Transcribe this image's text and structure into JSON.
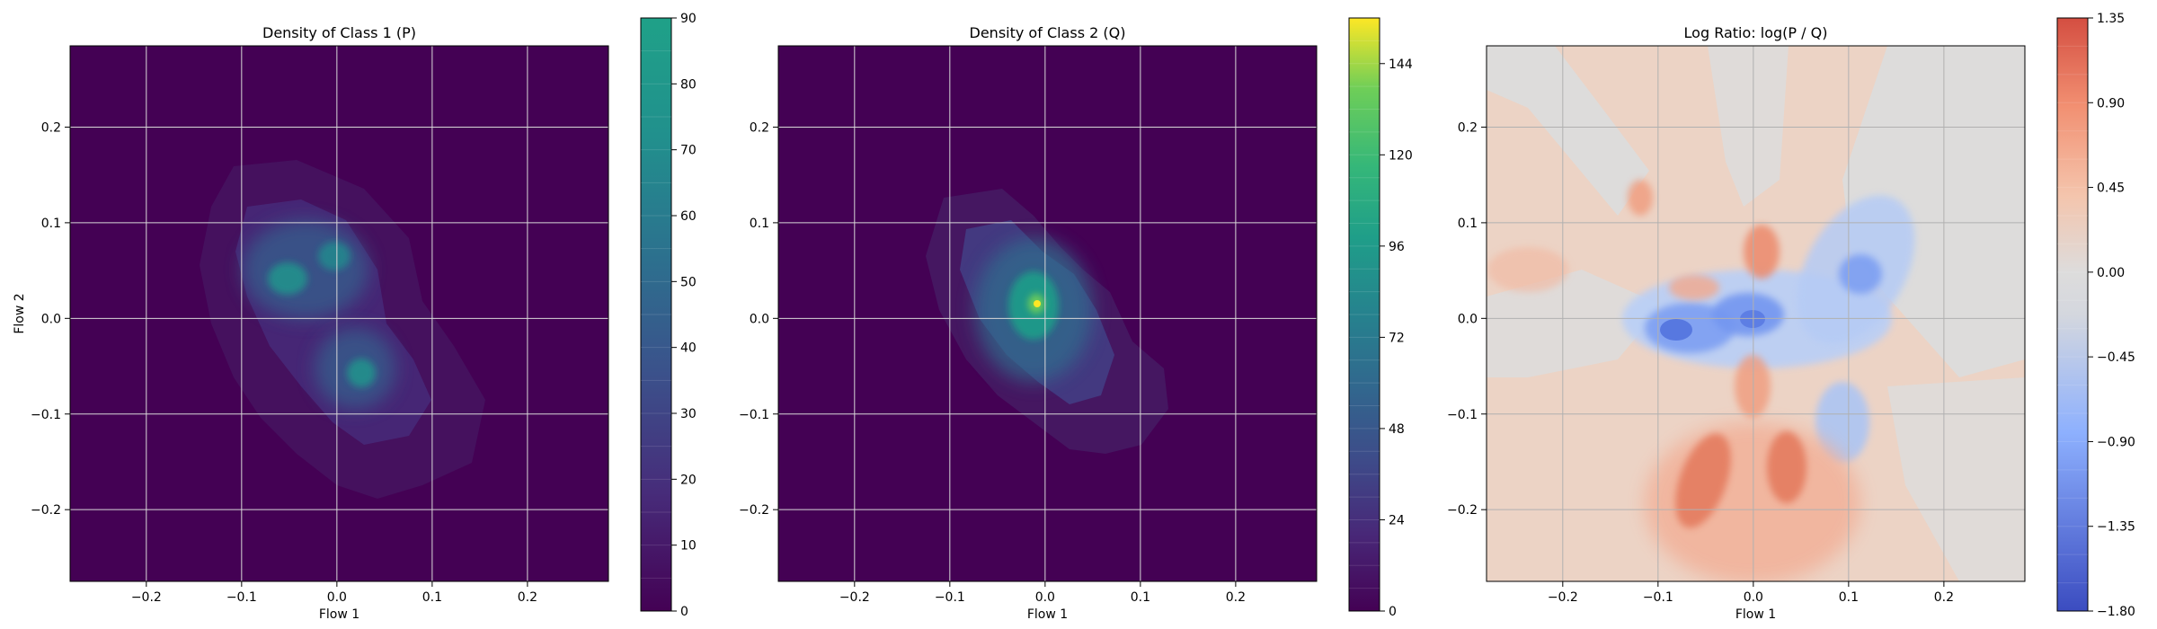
{
  "chart_data": [
    {
      "type": "heatmap",
      "title": "Density of Class 1 (P)",
      "xlabel": "Flow 1",
      "ylabel": "Flow 2",
      "xlim": [
        -0.28,
        0.285
      ],
      "ylim": [
        -0.275,
        0.285
      ],
      "xticks": [
        -0.2,
        -0.1,
        0.0,
        0.1,
        0.2
      ],
      "yticks": [
        -0.2,
        -0.1,
        0.0,
        0.1,
        0.2
      ],
      "xticklabels": [
        "−0.2",
        "−0.1",
        "0.0",
        "0.1",
        "0.2"
      ],
      "yticklabels": [
        "−0.2",
        "−0.1",
        "0.0",
        "0.1",
        "0.2"
      ],
      "grid": true,
      "colormap": "viridis",
      "colorbar": {
        "range": [
          0,
          90
        ],
        "ticks": [
          0,
          10,
          20,
          30,
          40,
          50,
          60,
          70,
          80,
          90
        ],
        "ticklabels": [
          "0",
          "10",
          "20",
          "30",
          "40",
          "50",
          "60",
          "70",
          "80",
          "90"
        ]
      },
      "peaks": [
        {
          "x": -0.05,
          "y": 0.04,
          "value": 55
        },
        {
          "x": 0.02,
          "y": -0.06,
          "value": 52
        },
        {
          "x": 0.0,
          "y": 0.06,
          "value": 45
        },
        {
          "x": -0.04,
          "y": 0.09,
          "value": 35
        }
      ]
    },
    {
      "type": "heatmap",
      "title": "Density of Class 2 (Q)",
      "xlabel": "Flow 1",
      "ylabel": "",
      "xlim": [
        -0.28,
        0.285
      ],
      "ylim": [
        -0.275,
        0.285
      ],
      "xticks": [
        -0.2,
        -0.1,
        0.0,
        0.1,
        0.2
      ],
      "yticks": [
        -0.2,
        -0.1,
        0.0,
        0.1,
        0.2
      ],
      "xticklabels": [
        "−0.2",
        "−0.1",
        "0.0",
        "0.1",
        "0.2"
      ],
      "yticklabels": [
        "−0.2",
        "−0.1",
        "0.0",
        "0.1",
        "0.2"
      ],
      "grid": true,
      "colormap": "viridis",
      "colorbar": {
        "range": [
          0,
          156
        ],
        "ticks": [
          0,
          24,
          48,
          72,
          96,
          120,
          144
        ],
        "ticklabels": [
          "0",
          "24",
          "48",
          "72",
          "96",
          "120",
          "144"
        ]
      },
      "peaks": [
        {
          "x": 0.0,
          "y": 0.015,
          "value": 150
        },
        {
          "x": -0.02,
          "y": 0.03,
          "value": 70
        },
        {
          "x": 0.01,
          "y": -0.04,
          "value": 55
        },
        {
          "x": -0.04,
          "y": 0.06,
          "value": 45
        }
      ]
    },
    {
      "type": "heatmap",
      "title": "Log Ratio: log(P / Q)",
      "xlabel": "Flow 1",
      "ylabel": "",
      "xlim": [
        -0.28,
        0.285
      ],
      "ylim": [
        -0.275,
        0.285
      ],
      "xticks": [
        -0.2,
        -0.1,
        0.0,
        0.1,
        0.2
      ],
      "yticks": [
        -0.2,
        -0.1,
        0.0,
        0.1,
        0.2
      ],
      "xticklabels": [
        "−0.2",
        "−0.1",
        "0.0",
        "0.1",
        "0.2"
      ],
      "yticklabels": [
        "−0.2",
        "−0.1",
        "0.0",
        "0.1",
        "0.2"
      ],
      "grid": true,
      "colormap": "coolwarm",
      "colorbar": {
        "range": [
          -1.8,
          1.35
        ],
        "ticks": [
          -1.8,
          -1.35,
          -0.9,
          -0.45,
          0.0,
          0.45,
          0.9,
          1.35
        ],
        "ticklabels": [
          "−1.80",
          "−1.35",
          "−0.90",
          "−0.45",
          "0.00",
          "0.45",
          "0.90",
          "1.35"
        ]
      },
      "peaks": [
        {
          "x": -0.06,
          "y": -0.02,
          "value": -1.1
        },
        {
          "x": 0.0,
          "y": -0.01,
          "value": -1.0
        },
        {
          "x": 0.09,
          "y": 0.04,
          "value": -0.9
        },
        {
          "x": 0.07,
          "y": -0.11,
          "value": -0.6
        },
        {
          "x": -0.04,
          "y": -0.16,
          "value": 0.9
        },
        {
          "x": 0.04,
          "y": -0.16,
          "value": 0.9
        },
        {
          "x": 0.0,
          "y": 0.06,
          "value": 0.8
        },
        {
          "x": -0.1,
          "y": 0.13,
          "value": 0.5
        },
        {
          "x": -0.05,
          "y": 0.03,
          "value": 0.6
        }
      ]
    }
  ]
}
